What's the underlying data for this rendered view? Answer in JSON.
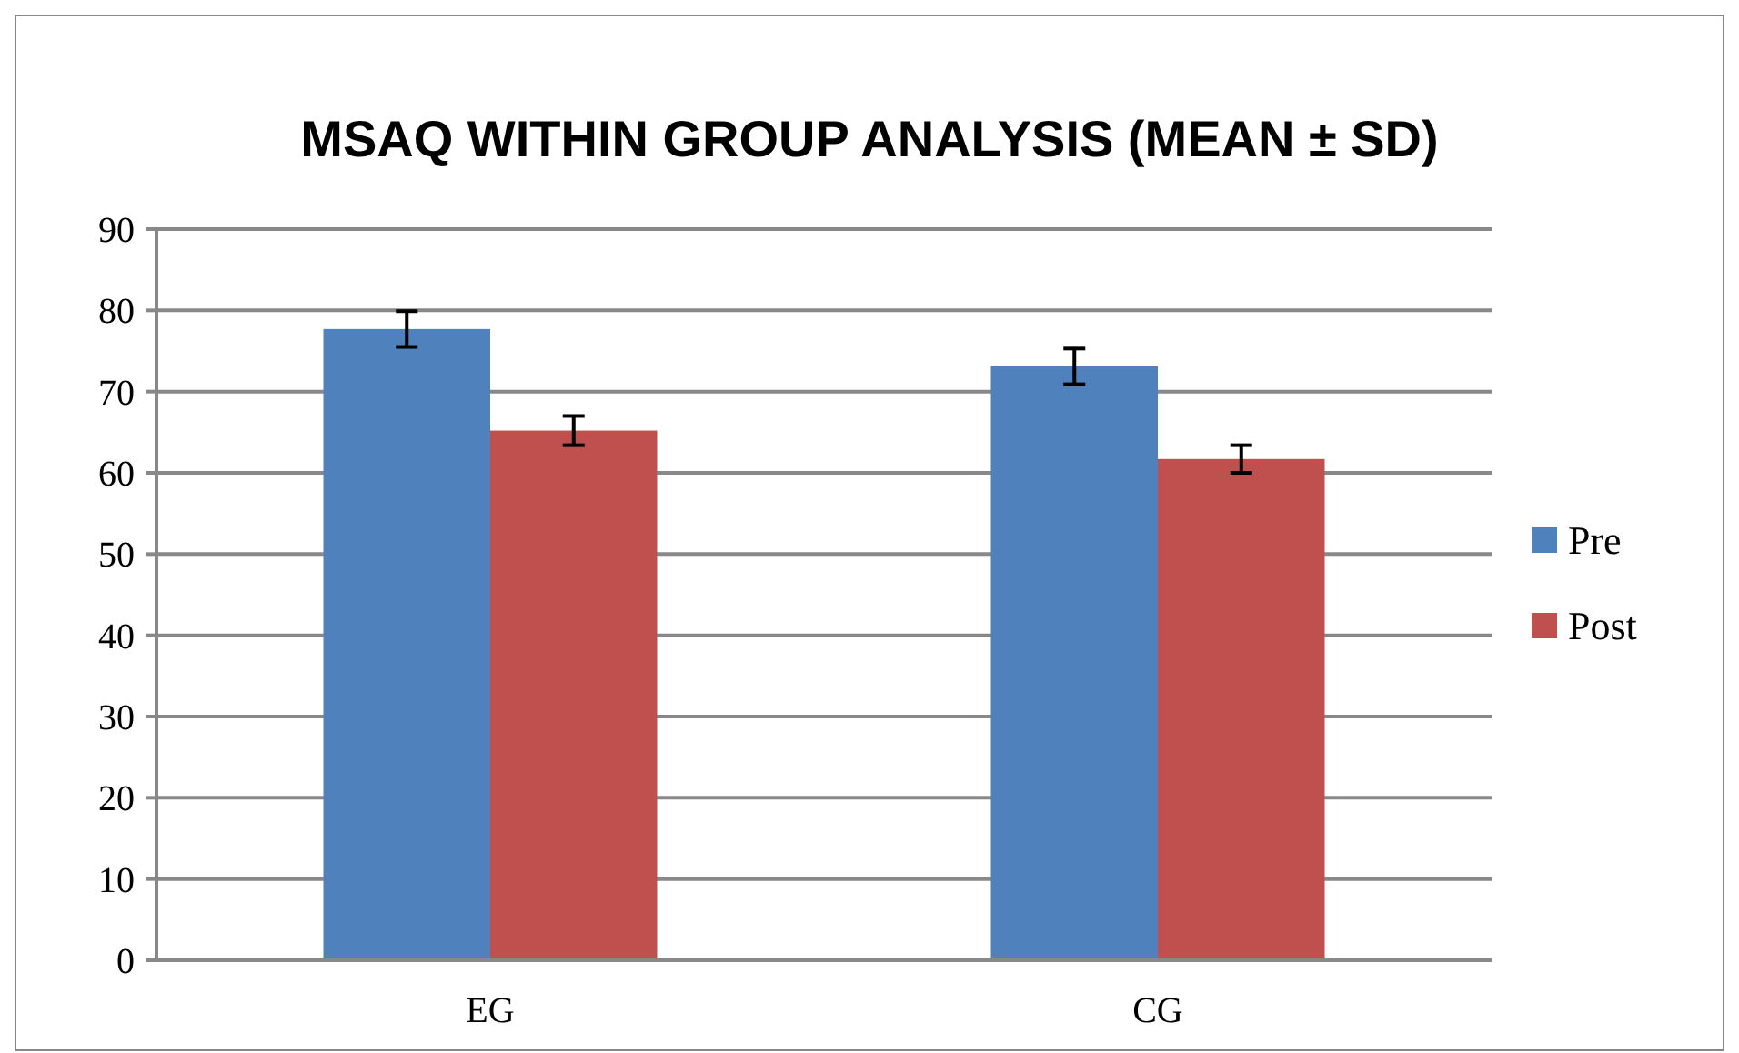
{
  "chart_data": {
    "type": "bar",
    "title": "MSAQ WITHIN GROUP ANALYSIS (MEAN ± SD)",
    "categories": [
      "EG",
      "CG"
    ],
    "series": [
      {
        "name": "Pre",
        "color": "#4f81bd",
        "values": [
          77.7,
          73.1
        ],
        "errors": [
          2.2,
          2.2
        ]
      },
      {
        "name": "Post",
        "color": "#c0504d",
        "values": [
          65.2,
          61.7
        ],
        "errors": [
          1.8,
          1.7
        ]
      }
    ],
    "ylim": [
      0,
      90
    ],
    "yticks": [
      0,
      10,
      20,
      30,
      40,
      50,
      60,
      70,
      80,
      90
    ],
    "grid": "y",
    "legend": "right"
  }
}
